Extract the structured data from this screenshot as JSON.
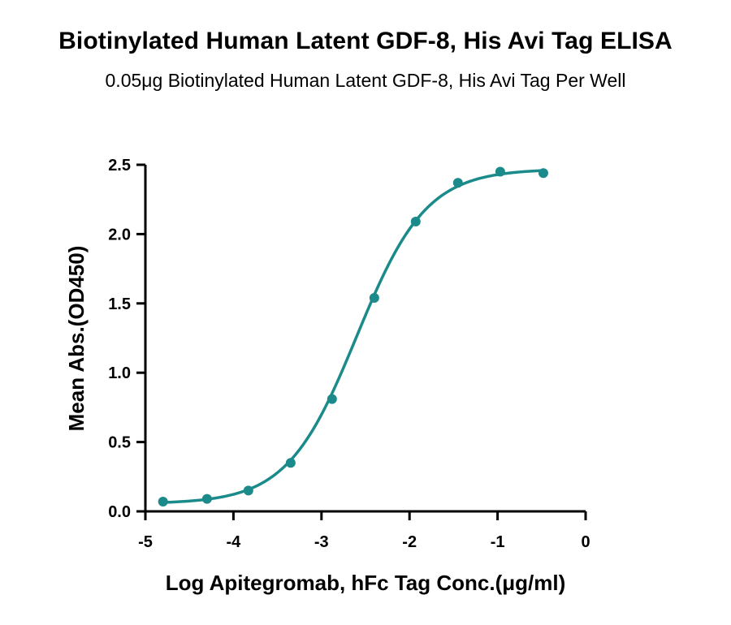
{
  "chart_data": {
    "type": "scatter",
    "title": "Biotinylated Human Latent GDF-8, His Avi Tag ELISA",
    "subtitle": "0.05μg Biotinylated Human Latent GDF-8, His Avi Tag Per Well",
    "xlabel": "Log Apitegromab, hFc Tag Conc.(μg/ml)",
    "ylabel": "Mean Abs.(OD450)",
    "xlim": [
      -5,
      0
    ],
    "ylim": [
      0,
      2.5
    ],
    "x_ticks": [
      -5,
      -4,
      -3,
      -2,
      -1,
      0
    ],
    "x_tick_labels": [
      "-5",
      "-4",
      "-3",
      "-2",
      "-1",
      "0"
    ],
    "y_ticks": [
      0,
      0.5,
      1.0,
      1.5,
      2.0,
      2.5
    ],
    "y_tick_labels": [
      "0.0",
      "0.5",
      "1.0",
      "1.5",
      "2.0",
      "2.5"
    ],
    "grid": false,
    "color": "#1b8a8a",
    "series": [
      {
        "x": [
          -4.8,
          -4.3,
          -3.83,
          -3.35,
          -2.88,
          -2.4,
          -1.93,
          -1.45,
          -0.97,
          -0.48
        ],
        "y": [
          0.07,
          0.09,
          0.15,
          0.35,
          0.81,
          1.54,
          2.09,
          2.37,
          2.45,
          2.44
        ]
      }
    ],
    "fit_curve": {
      "type": "4PL",
      "bottom": 0.055,
      "top": 2.47,
      "log_ec50": -2.6,
      "hill_slope": 1.1
    }
  }
}
